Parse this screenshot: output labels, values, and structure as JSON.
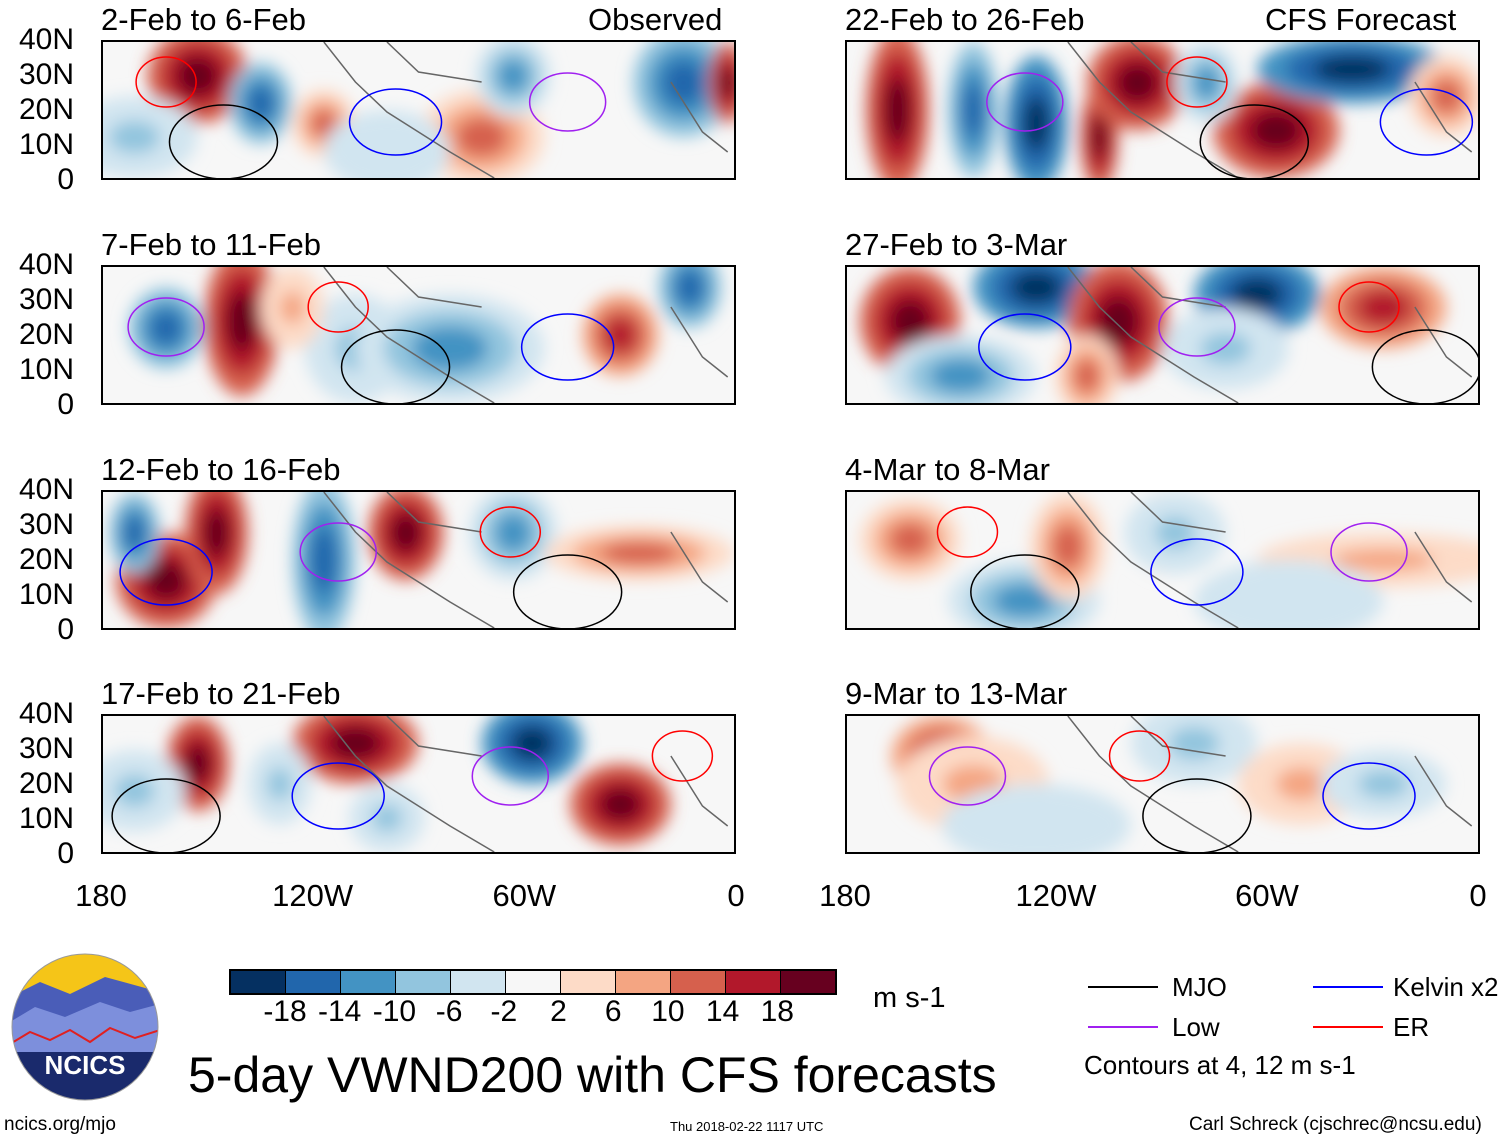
{
  "title": "5-day VWND200 with CFS forecasts",
  "left_header": "Observed",
  "right_header": "CFS Forecast",
  "panels_left": [
    {
      "label": "2-Feb to 6-Feb"
    },
    {
      "label": "7-Feb to 11-Feb"
    },
    {
      "label": "12-Feb to 16-Feb"
    },
    {
      "label": "17-Feb to 21-Feb"
    }
  ],
  "panels_right": [
    {
      "label": "22-Feb to 26-Feb"
    },
    {
      "label": "27-Feb to 3-Mar"
    },
    {
      "label": "4-Mar to 8-Mar"
    },
    {
      "label": "9-Mar to 13-Mar"
    }
  ],
  "lat_ticks": [
    "40N",
    "30N",
    "20N",
    "10N",
    "0"
  ],
  "lon_ticks": [
    "180",
    "120W",
    "60W",
    "0"
  ],
  "colorbar": {
    "colors": [
      "#053061",
      "#2166ac",
      "#4393c3",
      "#92c5de",
      "#d1e5f0",
      "#f7f7f7",
      "#fddbc7",
      "#f4a582",
      "#d6604d",
      "#b2182b",
      "#67001f"
    ],
    "labels": [
      "-18",
      "-14",
      "-10",
      "-6",
      "-2",
      "2",
      "6",
      "10",
      "14",
      "18"
    ],
    "units": "m s-1"
  },
  "legend": {
    "items": [
      {
        "label": "MJO",
        "color": "#000000"
      },
      {
        "label": "Kelvin x2",
        "color": "#0000ff"
      },
      {
        "label": "Low",
        "color": "#a020f0"
      },
      {
        "label": "ER",
        "color": "#ff0000"
      }
    ],
    "note": "Contours at 4, 12 m s-1"
  },
  "logo": {
    "text": "NCICS"
  },
  "footer": {
    "url": "ncics.org/mjo",
    "timestamp": "Thu 2018-02-22 1117 UTC",
    "credit": "Carl Schreck (cjschrec@ncsu.edu)"
  }
}
